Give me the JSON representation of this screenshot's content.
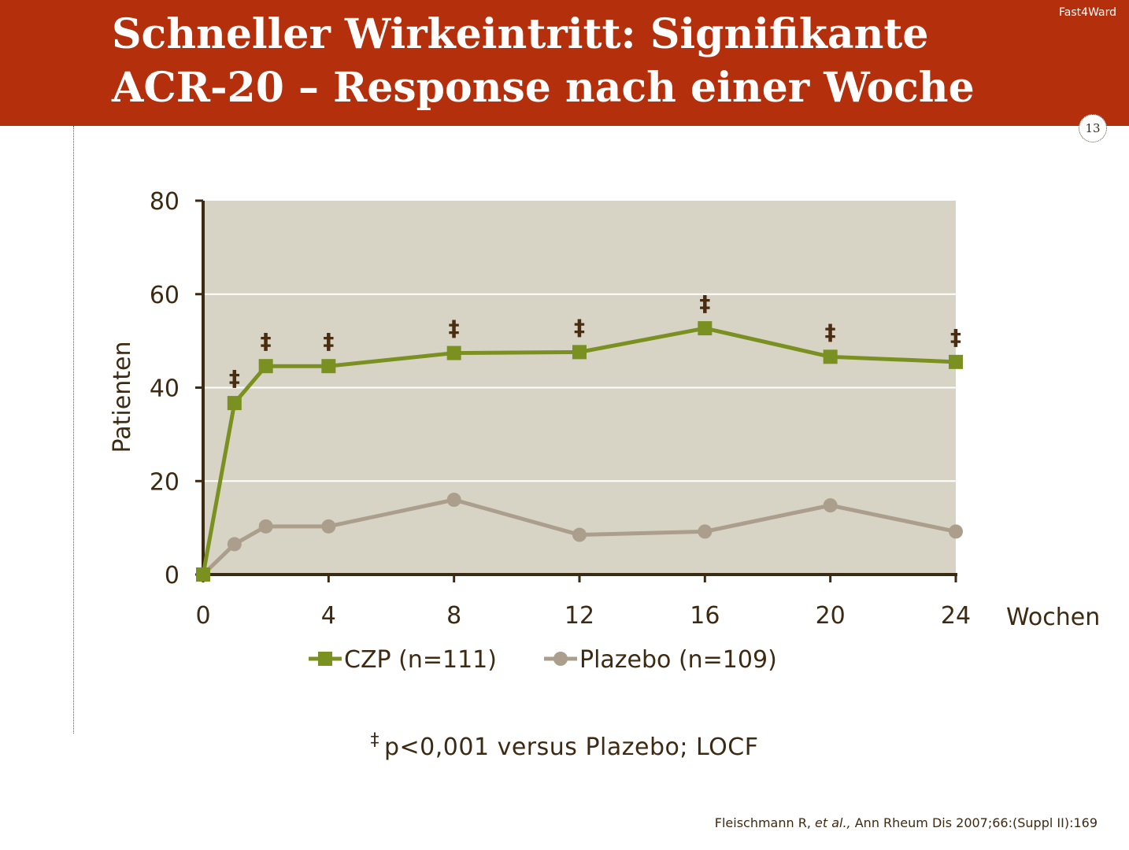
{
  "slide": {
    "title_line1": "Schneller Wirkeintritt: Signifikante",
    "title_line2": "ACR-20 – Response nach einer Woche",
    "brand": "Fast4Ward",
    "page_number": "13",
    "footnote_symbol": "‡",
    "footnote_text": "p<0,001 versus Plazebo; LOCF",
    "citation_pre": "Fleischmann R, ",
    "citation_italic": "et al.,",
    "citation_post": " Ann Rheum Dis 2007;66:(Suppl II):169"
  },
  "colors": {
    "header_bg": "#b4300d",
    "plot_bg": "#d7d4c5",
    "axis": "#3d2a12",
    "czp": "#7a9020",
    "placebo": "#ab9e8c",
    "marker_symbol": "#4a2d10"
  },
  "chart_data": {
    "type": "line",
    "title": "",
    "xlabel": "Wochen",
    "ylabel": "Patienten",
    "x": [
      0,
      1,
      2,
      4,
      8,
      12,
      16,
      20,
      24
    ],
    "xticks": [
      0,
      4,
      8,
      12,
      16,
      20,
      24
    ],
    "xtick_labels": [
      "0",
      "4",
      "8",
      "12",
      "16",
      "20",
      "24"
    ],
    "yticks": [
      0,
      20,
      40,
      60,
      80
    ],
    "ytick_labels": [
      "0",
      "20",
      "40",
      "60",
      "80"
    ],
    "xlim": [
      0,
      24
    ],
    "ylim": [
      0,
      80
    ],
    "grid": "horizontal",
    "legend_position": "bottom",
    "series": [
      {
        "name": "CZP (n=111)",
        "marker": "square",
        "values": [
          0,
          36.7,
          44.6,
          44.6,
          47.4,
          47.6,
          52.7,
          46.6,
          45.5
        ],
        "significance": [
          false,
          true,
          true,
          true,
          true,
          true,
          true,
          true,
          true
        ]
      },
      {
        "name": "Plazebo (n=109)",
        "marker": "circle",
        "values": [
          0,
          6.5,
          10.3,
          10.3,
          16.0,
          8.5,
          9.2,
          14.8,
          9.2
        ],
        "significance": [
          false,
          false,
          false,
          false,
          false,
          false,
          false,
          false,
          false
        ]
      }
    ],
    "annotation_symbol": "‡"
  }
}
